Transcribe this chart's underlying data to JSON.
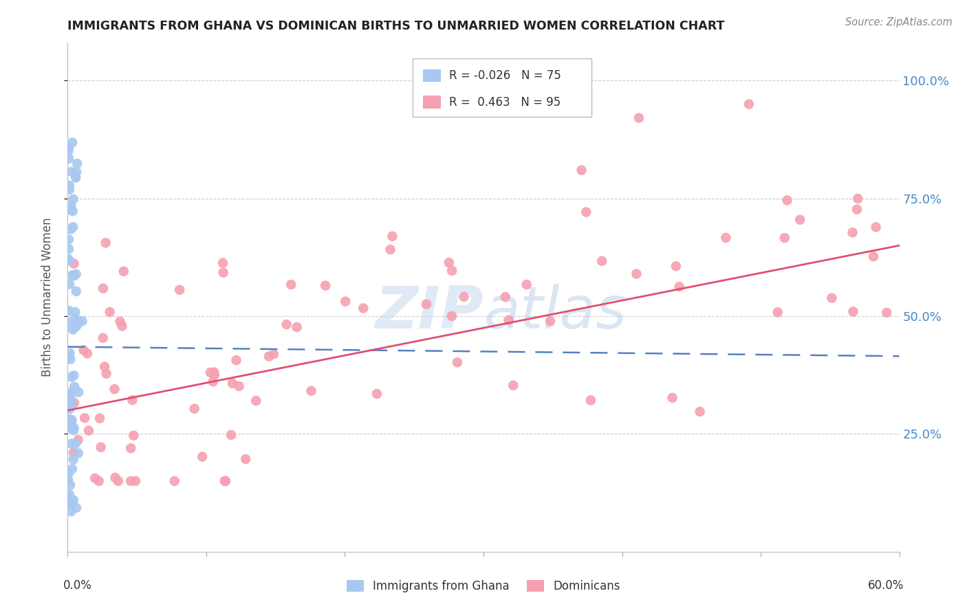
{
  "title": "IMMIGRANTS FROM GHANA VS DOMINICAN BIRTHS TO UNMARRIED WOMEN CORRELATION CHART",
  "source": "Source: ZipAtlas.com",
  "ylabel": "Births to Unmarried Women",
  "ytick_values": [
    0.25,
    0.5,
    0.75,
    1.0
  ],
  "xlim": [
    0.0,
    0.6
  ],
  "ylim": [
    0.0,
    1.08
  ],
  "color_ghana": "#a8c8f0",
  "color_dominican": "#f5a0b0",
  "trendline_ghana_color": "#5580c0",
  "trendline_dominican_color": "#e05070",
  "watermark_color": "#c8d8f0",
  "background_color": "#ffffff",
  "ghana_seed": 42,
  "dominican_seed": 7
}
